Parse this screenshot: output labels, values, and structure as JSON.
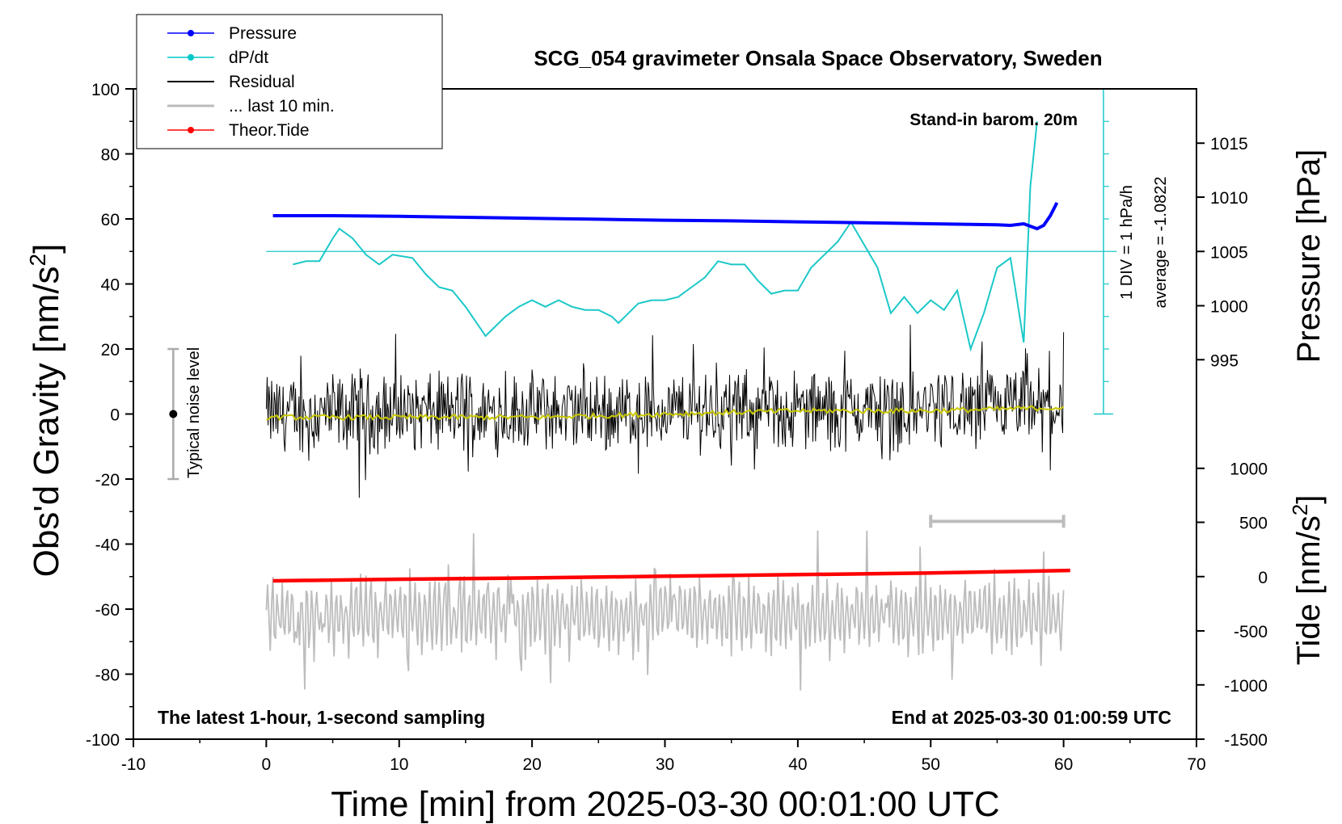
{
  "chart_data": {
    "type": "line",
    "title": "SCG_054 gravimeter Onsala Space Observatory, Sweden",
    "xlabel": "Time [min] from 2025-03-30 00:01:00 UTC",
    "xlim": [
      -10,
      70
    ],
    "xticks": [
      -10,
      0,
      10,
      20,
      30,
      40,
      50,
      60,
      70
    ],
    "y_left": {
      "label_main": "Obs'd Gravity [nm/s",
      "label_sup": "2",
      "label_end": "]",
      "lim": [
        -100,
        100
      ],
      "ticks": [
        -100,
        -80,
        -60,
        -40,
        -20,
        0,
        20,
        40,
        60,
        80,
        100
      ]
    },
    "y_right_pressure": {
      "label": "Pressure [hPa]",
      "ticks": [
        995,
        1000,
        1005,
        1010,
        1015
      ],
      "tick_values_on_left_axis": [
        16.7,
        33.3,
        50,
        66.7,
        83.3
      ]
    },
    "y_right_tide": {
      "label_main": "Tide [nm/s",
      "label_sup": "2",
      "label_end": "]",
      "ticks": [
        -1500,
        -1000,
        -500,
        0,
        500,
        1000
      ],
      "tick_values_on_left_axis": [
        -100,
        -83.3,
        -66.7,
        -50,
        -33.3,
        -16.7
      ]
    },
    "legend": {
      "position": "top-left",
      "entries": [
        {
          "label": "Pressure",
          "color": "#0000ff",
          "marker": true
        },
        {
          "label": "dP/dt",
          "color": "#00c8c8",
          "marker": true
        },
        {
          "label": "Residual",
          "color": "#000000",
          "marker": false
        },
        {
          "label": "... last 10 min.",
          "color": "#bbbbbb",
          "marker": false
        },
        {
          "label": "Theor.Tide",
          "color": "#ff0000",
          "marker": true
        }
      ]
    },
    "annotations": {
      "noise_label": "Typical noise level",
      "noise_range": [
        -20,
        20
      ],
      "noise_x": -7,
      "baro": "Stand-in barom. 20m",
      "div_label": "1 DIV = 1 hPa/h",
      "average_label": "average = -1.0822",
      "bottom_left": "The latest 1-hour, 1-second sampling",
      "bottom_right": "End at 2025-03-30 01:00:59 UTC",
      "last10_bar_x": [
        50,
        60
      ],
      "last10_bar_y": -33
    },
    "dpdt_axis": {
      "x": 63,
      "y_range": [
        0,
        100
      ],
      "zero_line_y": 50,
      "minor_ticks": [
        10,
        20,
        30,
        40,
        60,
        70,
        80,
        90
      ]
    },
    "colors": {
      "pressure": "#0000ff",
      "dpdt": "#1cc8c8",
      "residual": "#000000",
      "residual_mean": "#c8c800",
      "last10": "#bdbdbd",
      "tide": "#ff0000",
      "noise": "#aaaaaa"
    },
    "series": [
      {
        "name": "Pressure",
        "x": [
          0.5,
          5,
          10,
          15,
          20,
          25,
          30,
          35,
          40,
          45,
          50,
          53,
          55,
          56,
          57,
          58,
          58.5,
          59,
          59.5
        ],
        "y": [
          61,
          61,
          60.8,
          60.5,
          60.2,
          59.9,
          59.6,
          59.4,
          59.1,
          58.8,
          58.5,
          58.3,
          58.2,
          58,
          58.5,
          57,
          58,
          61,
          65
        ]
      },
      {
        "name": "dP/dt",
        "x": [
          2,
          3,
          4,
          5,
          5.5,
          6.5,
          7.5,
          8.5,
          9.5,
          11,
          12,
          13,
          14,
          15,
          16,
          16.5,
          17,
          18,
          19,
          20,
          21,
          22,
          23,
          24,
          25,
          26,
          26.5,
          27,
          28,
          29,
          30,
          31,
          32,
          33,
          34,
          35,
          36,
          37,
          38,
          39,
          40,
          41,
          42,
          43,
          44,
          45,
          46,
          47,
          48,
          49,
          50,
          51,
          52,
          53,
          54,
          55,
          56,
          57,
          57.5,
          58
        ],
        "y": [
          46,
          47,
          47,
          54,
          57,
          54,
          49,
          46,
          49,
          48,
          43,
          39,
          38,
          33,
          27,
          24,
          26,
          30,
          33,
          35,
          33,
          35,
          33,
          32,
          32,
          30,
          28,
          30,
          34,
          35,
          35,
          36,
          39,
          42,
          47,
          46,
          46,
          41,
          37,
          38,
          38,
          45,
          49,
          53,
          59,
          52,
          45,
          31,
          36,
          31,
          35,
          32,
          38,
          20,
          31,
          45,
          48,
          22,
          70,
          90
        ]
      },
      {
        "name": "Residual",
        "x_range": [
          0,
          60
        ],
        "amplitude": 10,
        "clip": [
          -26,
          35
        ]
      },
      {
        "name": "Residual mean",
        "x": [
          0,
          10,
          20,
          30,
          40,
          50,
          60
        ],
        "y": [
          -1,
          -1,
          -1,
          0,
          1,
          1,
          2
        ]
      },
      {
        "name": "... last 10 min.",
        "x_range": [
          0,
          60
        ],
        "center": -62,
        "amplitude": 10,
        "clip": [
          -85,
          -27
        ]
      },
      {
        "name": "Theor.Tide",
        "x": [
          0.5,
          10,
          20,
          30,
          40,
          50,
          60.5
        ],
        "y": [
          -51.3,
          -50.8,
          -50.4,
          -49.9,
          -49.4,
          -48.9,
          -48.1
        ]
      }
    ]
  }
}
